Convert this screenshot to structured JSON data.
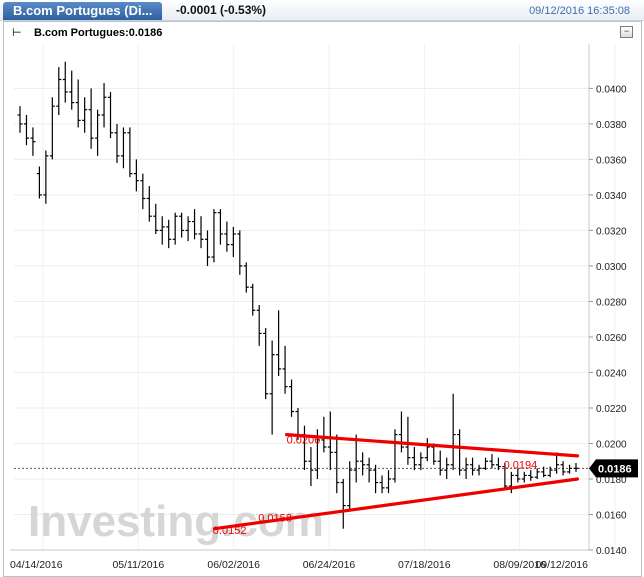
{
  "header": {
    "title": "B.com Portugues (Di...",
    "change": "-0.0001 (-0.53%)",
    "timestamp": "09/12/2016 16:35:08"
  },
  "legend": {
    "label": "B.com Portugues:0.0186"
  },
  "watermark": "Investing.com",
  "current_price_label": "0.0186",
  "colors": {
    "price_bars": "#000000",
    "trendline": "#ee0000",
    "label_bg": "#000000",
    "title_tab": "#2d5f9e"
  },
  "chart_data": {
    "type": "ohlc",
    "ylim": [
      0.014,
      0.0425
    ],
    "yticks": [
      0.014,
      0.016,
      0.018,
      0.02,
      0.022,
      0.024,
      0.026,
      0.028,
      0.03,
      0.032,
      0.034,
      0.036,
      0.038,
      0.04
    ],
    "ytick_labels": [
      "0.0140",
      "0.0160",
      "0.0180",
      "0.0200",
      "0.0220",
      "0.0240",
      "0.0260",
      "0.0280",
      "0.0300",
      "0.0320",
      "0.0340",
      "0.0360",
      "0.0380",
      "0.0400"
    ],
    "xtick_labels": [
      "04/14/2016",
      "05/11/2016",
      "06/02/2016",
      "06/24/2016",
      "07/18/2016",
      "08/09/2016",
      "09/12/2016"
    ],
    "last_price": 0.0186,
    "series": [
      {
        "name": "B.com Portugues",
        "values": [
          [
            0.0385,
            0.039,
            0.0375,
            0.038
          ],
          [
            0.038,
            0.0385,
            0.0368,
            0.0372
          ],
          [
            0.0372,
            0.0378,
            0.0362,
            0.037
          ],
          [
            0.0352,
            0.0356,
            0.0338,
            0.034
          ],
          [
            0.034,
            0.0365,
            0.0335,
            0.0362
          ],
          [
            0.0362,
            0.0395,
            0.036,
            0.039
          ],
          [
            0.039,
            0.0412,
            0.0385,
            0.0405
          ],
          [
            0.0405,
            0.0415,
            0.0392,
            0.0398
          ],
          [
            0.0398,
            0.041,
            0.0388,
            0.0392
          ],
          [
            0.0392,
            0.0405,
            0.0378,
            0.0382
          ],
          [
            0.0382,
            0.0395,
            0.0375,
            0.0388
          ],
          [
            0.0388,
            0.04,
            0.0366,
            0.0372
          ],
          [
            0.0372,
            0.0388,
            0.0362,
            0.0385
          ],
          [
            0.0385,
            0.0403,
            0.0378,
            0.0395
          ],
          [
            0.0395,
            0.0398,
            0.0372,
            0.0375
          ],
          [
            0.0375,
            0.038,
            0.0358,
            0.0362
          ],
          [
            0.0362,
            0.0378,
            0.0355,
            0.0375
          ],
          [
            0.0375,
            0.0378,
            0.035,
            0.0352
          ],
          [
            0.0352,
            0.036,
            0.0342,
            0.0348
          ],
          [
            0.0348,
            0.0352,
            0.0332,
            0.0338
          ],
          [
            0.0338,
            0.0345,
            0.0325,
            0.0328
          ],
          [
            0.0328,
            0.0335,
            0.0318,
            0.032
          ],
          [
            0.032,
            0.0328,
            0.0312,
            0.0322
          ],
          [
            0.0322,
            0.0326,
            0.031,
            0.0315
          ],
          [
            0.0315,
            0.033,
            0.0312,
            0.0328
          ],
          [
            0.0328,
            0.033,
            0.0316,
            0.032
          ],
          [
            0.032,
            0.0328,
            0.0314,
            0.0325
          ],
          [
            0.0325,
            0.0332,
            0.0315,
            0.0318
          ],
          [
            0.0318,
            0.0328,
            0.031,
            0.0315
          ],
          [
            0.0315,
            0.032,
            0.03,
            0.0305
          ],
          [
            0.0305,
            0.0332,
            0.0302,
            0.033
          ],
          [
            0.033,
            0.0332,
            0.0312,
            0.0318
          ],
          [
            0.0318,
            0.0325,
            0.0308,
            0.0312
          ],
          [
            0.0312,
            0.0322,
            0.0305,
            0.0318
          ],
          [
            0.0318,
            0.032,
            0.0295,
            0.03
          ],
          [
            0.03,
            0.0302,
            0.0285,
            0.0288
          ],
          [
            0.0288,
            0.029,
            0.0272,
            0.0275
          ],
          [
            0.0275,
            0.0278,
            0.0255,
            0.0262
          ],
          [
            0.0262,
            0.0265,
            0.0225,
            0.0228
          ],
          [
            0.0228,
            0.0258,
            0.0205,
            0.025
          ],
          [
            0.025,
            0.0275,
            0.0238,
            0.0242
          ],
          [
            0.0242,
            0.0255,
            0.0228,
            0.0232
          ],
          [
            0.0232,
            0.0236,
            0.0215,
            0.0218
          ],
          [
            0.0218,
            0.022,
            0.0202,
            0.0205
          ],
          [
            0.0205,
            0.021,
            0.0185,
            0.019
          ],
          [
            0.019,
            0.0198,
            0.0176,
            0.0185
          ],
          [
            0.0185,
            0.0208,
            0.018,
            0.0202
          ],
          [
            0.0202,
            0.0215,
            0.0195,
            0.0198
          ],
          [
            0.0198,
            0.0218,
            0.0185,
            0.0195
          ],
          [
            0.0195,
            0.0205,
            0.0172,
            0.0178
          ],
          [
            0.0178,
            0.018,
            0.0152,
            0.0165
          ],
          [
            0.0165,
            0.019,
            0.0162,
            0.0185
          ],
          [
            0.0185,
            0.0205,
            0.0178,
            0.019
          ],
          [
            0.019,
            0.0195,
            0.0182,
            0.0188
          ],
          [
            0.0188,
            0.0192,
            0.0178,
            0.0185
          ],
          [
            0.0185,
            0.0188,
            0.0172,
            0.0178
          ],
          [
            0.0178,
            0.0182,
            0.0172,
            0.0175
          ],
          [
            0.0175,
            0.0185,
            0.0172,
            0.018
          ],
          [
            0.018,
            0.0208,
            0.0178,
            0.0205
          ],
          [
            0.0205,
            0.0218,
            0.0195,
            0.0198
          ],
          [
            0.0198,
            0.0215,
            0.0188,
            0.0192
          ],
          [
            0.0192,
            0.0198,
            0.0185,
            0.0188
          ],
          [
            0.0188,
            0.0195,
            0.0185,
            0.0192
          ],
          [
            0.0192,
            0.0203,
            0.019,
            0.0198
          ],
          [
            0.0198,
            0.02,
            0.0188,
            0.019
          ],
          [
            0.019,
            0.0196,
            0.0182,
            0.0185
          ],
          [
            0.0185,
            0.0192,
            0.018,
            0.0188
          ],
          [
            0.0188,
            0.0228,
            0.0185,
            0.0205
          ],
          [
            0.0205,
            0.0208,
            0.0182,
            0.0185
          ],
          [
            0.0185,
            0.0192,
            0.018,
            0.0188
          ],
          [
            0.0188,
            0.0192,
            0.0182,
            0.0185
          ],
          [
            0.0185,
            0.0188,
            0.0182,
            0.0186
          ],
          [
            0.0186,
            0.0192,
            0.0185,
            0.019
          ],
          [
            0.019,
            0.0194,
            0.0186,
            0.0188
          ],
          [
            0.0188,
            0.0192,
            0.0185,
            0.0187
          ],
          [
            0.0187,
            0.0189,
            0.0174,
            0.0176
          ],
          [
            0.0176,
            0.0184,
            0.0172,
            0.0182
          ],
          [
            0.0182,
            0.0186,
            0.0178,
            0.018
          ],
          [
            0.018,
            0.0184,
            0.0178,
            0.0182
          ],
          [
            0.0182,
            0.0185,
            0.0179,
            0.0181
          ],
          [
            0.0181,
            0.0186,
            0.018,
            0.0184
          ],
          [
            0.0184,
            0.0187,
            0.0181,
            0.0182
          ],
          [
            0.0182,
            0.0187,
            0.0181,
            0.0185
          ],
          [
            0.0185,
            0.0195,
            0.0183,
            0.0188
          ],
          [
            0.0188,
            0.019,
            0.0182,
            0.0184
          ],
          [
            0.0184,
            0.0188,
            0.0183,
            0.0186
          ],
          [
            0.0186,
            0.0189,
            0.0184,
            0.0186
          ]
        ]
      }
    ],
    "trendlines": [
      {
        "from": [
          0.48,
          0.0205
        ],
        "to": [
          0.992,
          0.0193
        ],
        "color": "#ee0000"
      },
      {
        "from": [
          0.353,
          0.0152
        ],
        "to": [
          0.992,
          0.018
        ],
        "color": "#ee0000"
      }
    ],
    "annotations": [
      {
        "text": "0.0206",
        "xf": 0.48,
        "y": 0.02
      },
      {
        "text": "0.0194",
        "xf": 0.862,
        "y": 0.0186
      },
      {
        "text": "0.0158",
        "xf": 0.43,
        "y": 0.0156
      },
      {
        "text": "0.0152",
        "xf": 0.35,
        "y": 0.0149
      }
    ]
  }
}
